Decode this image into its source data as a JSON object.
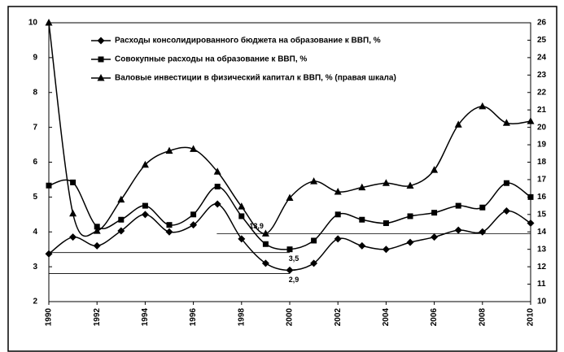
{
  "chart_data": {
    "type": "line",
    "x": [
      1990,
      1991,
      1992,
      1993,
      1994,
      1995,
      1996,
      1997,
      1998,
      1999,
      2000,
      2001,
      2002,
      2003,
      2004,
      2005,
      2006,
      2007,
      2008,
      2009,
      2010
    ],
    "xlim": [
      1990,
      2010
    ],
    "xticks": [
      1990,
      1992,
      1994,
      1996,
      1998,
      2000,
      2002,
      2004,
      2006,
      2008,
      2010
    ],
    "ylim": [
      2,
      10
    ],
    "yticks": [
      2,
      3,
      4,
      5,
      6,
      7,
      8,
      9,
      10
    ],
    "y2lim": [
      10,
      26
    ],
    "y2ticks": [
      10,
      11,
      12,
      13,
      14,
      15,
      16,
      17,
      18,
      19,
      20,
      21,
      22,
      23,
      24,
      25,
      26
    ],
    "legend": "upper left",
    "series": [
      {
        "name": "Расходы консолидированного бюджета на образование к ВВП, %",
        "color": "#000000",
        "marker": "diamond",
        "values": [
          3.37,
          3.85,
          3.6,
          4.03,
          4.5,
          4.0,
          4.2,
          4.8,
          3.8,
          3.1,
          2.9,
          3.1,
          3.8,
          3.6,
          3.5,
          3.7,
          3.85,
          4.05,
          4.0,
          4.6,
          4.25
        ],
        "value_labels": [
          null,
          null,
          null,
          null,
          null,
          null,
          null,
          null,
          null,
          null,
          "2,9",
          null,
          null,
          null,
          null,
          null,
          null,
          null,
          null,
          null,
          null
        ]
      },
      {
        "name": "Совокупные расходы на образование к ВВП, %",
        "color": "#000000",
        "marker": "square",
        "values": [
          5.33,
          5.42,
          4.15,
          4.35,
          4.75,
          4.2,
          4.5,
          5.3,
          4.45,
          3.65,
          3.5,
          3.75,
          4.5,
          4.35,
          4.25,
          4.45,
          4.55,
          4.75,
          4.7,
          5.4,
          5.0
        ],
        "value_labels": [
          null,
          null,
          null,
          null,
          null,
          null,
          null,
          null,
          null,
          null,
          "3,5",
          null,
          null,
          null,
          null,
          null,
          null,
          null,
          null,
          null,
          null
        ]
      },
      {
        "name": "Валовые инвестиции в физический капитал к ВВП, % (правая шкала)",
        "color": "#000000",
        "marker": "triangle",
        "axis": "y2",
        "values": [
          26,
          15.05,
          14.05,
          15.85,
          17.85,
          18.65,
          18.75,
          17.45,
          15.45,
          13.9,
          15.95,
          16.9,
          16.3,
          16.55,
          16.8,
          16.65,
          17.55,
          20.15,
          21.2,
          20.25,
          20.35
        ],
        "value_labels": [
          null,
          null,
          null,
          null,
          null,
          null,
          null,
          null,
          null,
          "13,9",
          null,
          null,
          null,
          null,
          null,
          null,
          null,
          null,
          null,
          null,
          null
        ]
      }
    ]
  }
}
